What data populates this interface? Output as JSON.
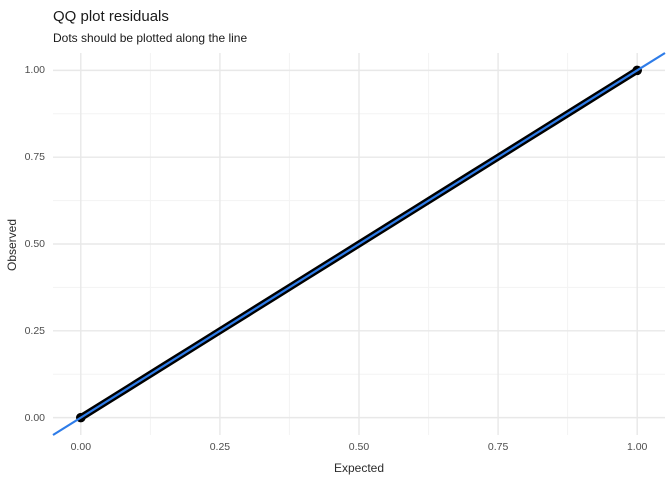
{
  "chart_data": {
    "type": "scatter",
    "title": "QQ plot residuals",
    "subtitle": "Dots should be plotted along the line",
    "xlabel": "Expected",
    "ylabel": "Observed",
    "xlim": [
      -0.05,
      1.05
    ],
    "ylim": [
      -0.05,
      1.05
    ],
    "x_ticks": [
      {
        "v": 0.0,
        "label": "0.00"
      },
      {
        "v": 0.25,
        "label": "0.25"
      },
      {
        "v": 0.5,
        "label": "0.50"
      },
      {
        "v": 0.75,
        "label": "0.75"
      },
      {
        "v": 1.0,
        "label": "1.00"
      }
    ],
    "y_ticks": [
      {
        "v": 0.0,
        "label": "0.00"
      },
      {
        "v": 0.25,
        "label": "0.25"
      },
      {
        "v": 0.5,
        "label": "0.50"
      },
      {
        "v": 0.75,
        "label": "0.75"
      },
      {
        "v": 1.0,
        "label": "1.00"
      }
    ],
    "minor_ticks": [
      0.125,
      0.375,
      0.625,
      0.875
    ],
    "grid": "on",
    "legend": "none",
    "points_description": "Dense continuous band of black dots lying exactly on the identity line y = x from (0,0) to (1,1), with slightly heavier clumps at both ends",
    "points": [
      [
        0.0,
        0.0
      ],
      [
        0.05,
        0.05
      ],
      [
        0.1,
        0.1
      ],
      [
        0.15,
        0.15
      ],
      [
        0.2,
        0.2
      ],
      [
        0.25,
        0.25
      ],
      [
        0.3,
        0.3
      ],
      [
        0.35,
        0.35
      ],
      [
        0.4,
        0.4
      ],
      [
        0.45,
        0.45
      ],
      [
        0.5,
        0.5
      ],
      [
        0.55,
        0.55
      ],
      [
        0.6,
        0.6
      ],
      [
        0.65,
        0.65
      ],
      [
        0.7,
        0.7
      ],
      [
        0.75,
        0.75
      ],
      [
        0.8,
        0.8
      ],
      [
        0.85,
        0.85
      ],
      [
        0.9,
        0.9
      ],
      [
        0.95,
        0.95
      ],
      [
        1.0,
        1.0
      ]
    ],
    "point_color": "#000000",
    "reference_line": {
      "slope": 1,
      "intercept": 0,
      "color": "#2e7ce8"
    },
    "colors": {
      "background": "#ffffff",
      "major_grid": "#e8e8e8",
      "minor_grid": "#f3f3f3",
      "tick_text": "#4d4d4d",
      "title_text": "#1a1a1a",
      "accent_blue": "#2e7ce8",
      "points_black": "#000000"
    }
  }
}
